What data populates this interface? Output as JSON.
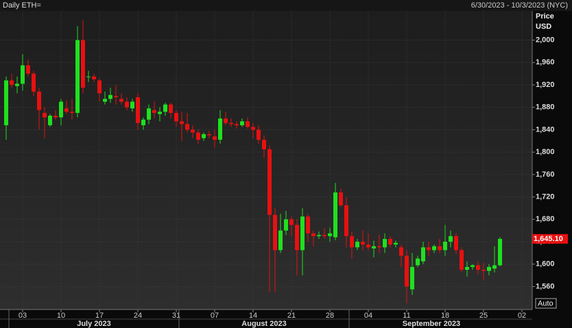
{
  "chart_data": {
    "type": "candlestick",
    "title": "Daily ETH=",
    "subtitle": "6/30/2023 - 10/3/2023 (NYC)",
    "y_label": [
      "Price",
      "USD"
    ],
    "scale_mode": "Auto",
    "x": [
      "2023-06-30",
      "2023-07-01",
      "2023-07-02",
      "2023-07-03",
      "2023-07-04",
      "2023-07-05",
      "2023-07-06",
      "2023-07-07",
      "2023-07-08",
      "2023-07-09",
      "2023-07-10",
      "2023-07-11",
      "2023-07-12",
      "2023-07-13",
      "2023-07-14",
      "2023-07-15",
      "2023-07-16",
      "2023-07-17",
      "2023-07-18",
      "2023-07-19",
      "2023-07-20",
      "2023-07-21",
      "2023-07-22",
      "2023-07-23",
      "2023-07-24",
      "2023-07-25",
      "2023-07-26",
      "2023-07-27",
      "2023-07-28",
      "2023-07-29",
      "2023-07-30",
      "2023-07-31",
      "2023-08-01",
      "2023-08-02",
      "2023-08-03",
      "2023-08-04",
      "2023-08-05",
      "2023-08-06",
      "2023-08-07",
      "2023-08-08",
      "2023-08-09",
      "2023-08-10",
      "2023-08-11",
      "2023-08-12",
      "2023-08-13",
      "2023-08-14",
      "2023-08-15",
      "2023-08-16",
      "2023-08-17",
      "2023-08-18",
      "2023-08-19",
      "2023-08-20",
      "2023-08-21",
      "2023-08-22",
      "2023-08-23",
      "2023-08-24",
      "2023-08-25",
      "2023-08-26",
      "2023-08-27",
      "2023-08-28",
      "2023-08-29",
      "2023-08-30",
      "2023-08-31",
      "2023-09-01",
      "2023-09-02",
      "2023-09-03",
      "2023-09-04",
      "2023-09-05",
      "2023-09-06",
      "2023-09-07",
      "2023-09-08",
      "2023-09-09",
      "2023-09-10",
      "2023-09-11",
      "2023-09-12",
      "2023-09-13",
      "2023-09-14",
      "2023-09-15",
      "2023-09-16",
      "2023-09-17",
      "2023-09-18",
      "2023-09-19",
      "2023-09-20",
      "2023-09-21",
      "2023-09-22",
      "2023-09-23",
      "2023-09-24",
      "2023-09-25",
      "2023-09-26",
      "2023-09-27",
      "2023-09-28"
    ],
    "open": [
      1848,
      1928,
      1918,
      1922,
      1955,
      1940,
      1908,
      1870,
      1848,
      1865,
      1862,
      1878,
      1872,
      1870,
      2000,
      1935,
      1935,
      1928,
      1890,
      1895,
      1900,
      1895,
      1890,
      1878,
      1898,
      1848,
      1858,
      1875,
      1868,
      1872,
      1885,
      1870,
      1855,
      1850,
      1840,
      1835,
      1825,
      1832,
      1828,
      1822,
      1860,
      1852,
      1850,
      1848,
      1855,
      1845,
      1840,
      1822,
      1805,
      1688,
      1625,
      1660,
      1680,
      1670,
      1625,
      1685,
      1655,
      1650,
      1652,
      1650,
      1648,
      1728,
      1705,
      1650,
      1630,
      1640,
      1635,
      1628,
      1632,
      1630,
      1645,
      1635,
      1630,
      1615,
      1555,
      1598,
      1605,
      1630,
      1625,
      1632,
      1625,
      1640,
      1650,
      1625,
      1590,
      1595,
      1598,
      1590,
      1588,
      1592,
      1598
    ],
    "high": [
      1935,
      1940,
      1935,
      1975,
      1965,
      1945,
      1915,
      1880,
      1868,
      1875,
      1895,
      1892,
      1895,
      2025,
      2035,
      1945,
      1940,
      1932,
      1908,
      1915,
      1920,
      1905,
      1898,
      1895,
      1905,
      1862,
      1885,
      1890,
      1880,
      1888,
      1888,
      1875,
      1872,
      1870,
      1848,
      1840,
      1835,
      1838,
      1840,
      1875,
      1872,
      1860,
      1855,
      1860,
      1862,
      1852,
      1848,
      1830,
      1812,
      1700,
      1690,
      1695,
      1685,
      1680,
      1700,
      1690,
      1660,
      1658,
      1665,
      1665,
      1745,
      1735,
      1720,
      1658,
      1645,
      1660,
      1655,
      1642,
      1652,
      1655,
      1650,
      1642,
      1635,
      1625,
      1620,
      1615,
      1640,
      1640,
      1635,
      1645,
      1670,
      1660,
      1655,
      1630,
      1605,
      1600,
      1605,
      1602,
      1600,
      1632,
      1648
    ],
    "low": [
      1822,
      1915,
      1905,
      1910,
      1935,
      1900,
      1840,
      1825,
      1845,
      1858,
      1848,
      1868,
      1858,
      1862,
      1905,
      1925,
      1925,
      1890,
      1885,
      1888,
      1885,
      1885,
      1875,
      1872,
      1840,
      1840,
      1850,
      1860,
      1855,
      1865,
      1860,
      1845,
      1820,
      1835,
      1825,
      1815,
      1820,
      1825,
      1808,
      1815,
      1848,
      1845,
      1842,
      1845,
      1842,
      1825,
      1815,
      1790,
      1550,
      1550,
      1620,
      1652,
      1650,
      1580,
      1580,
      1640,
      1632,
      1645,
      1645,
      1640,
      1643,
      1702,
      1630,
      1610,
      1625,
      1625,
      1625,
      1612,
      1620,
      1620,
      1630,
      1630,
      1595,
      1530,
      1545,
      1595,
      1600,
      1615,
      1620,
      1620,
      1615,
      1630,
      1618,
      1585,
      1578,
      1590,
      1582,
      1572,
      1580,
      1585,
      1596
    ],
    "close": [
      1928,
      1920,
      1922,
      1955,
      1940,
      1908,
      1875,
      1862,
      1865,
      1862,
      1890,
      1872,
      1870,
      2000,
      1915,
      1935,
      1930,
      1905,
      1895,
      1902,
      1898,
      1890,
      1880,
      1890,
      1852,
      1858,
      1878,
      1870,
      1872,
      1885,
      1870,
      1855,
      1850,
      1840,
      1835,
      1822,
      1832,
      1830,
      1822,
      1860,
      1852,
      1850,
      1848,
      1855,
      1845,
      1840,
      1822,
      1805,
      1688,
      1625,
      1660,
      1680,
      1670,
      1625,
      1685,
      1655,
      1650,
      1652,
      1650,
      1655,
      1728,
      1705,
      1650,
      1630,
      1640,
      1635,
      1630,
      1632,
      1630,
      1645,
      1635,
      1638,
      1615,
      1560,
      1595,
      1610,
      1630,
      1625,
      1632,
      1625,
      1640,
      1650,
      1625,
      1590,
      1595,
      1598,
      1590,
      1588,
      1595,
      1598,
      1645.1
    ],
    "up_color": "#1fe01f",
    "down_color": "#e81010",
    "last_price": {
      "value": 1645.1,
      "label": "1,645.10"
    },
    "xlim": [
      "2023-06-29",
      "2023-10-03"
    ],
    "xticks": [
      {
        "value": "2023-07-03",
        "label": "03"
      },
      {
        "value": "2023-07-10",
        "label": "10"
      },
      {
        "value": "2023-07-17",
        "label": "17"
      },
      {
        "value": "2023-07-24",
        "label": "24"
      },
      {
        "value": "2023-07-31",
        "label": "31"
      },
      {
        "value": "2023-08-07",
        "label": "07"
      },
      {
        "value": "2023-08-14",
        "label": "14"
      },
      {
        "value": "2023-08-21",
        "label": "21"
      },
      {
        "value": "2023-08-28",
        "label": "28"
      },
      {
        "value": "2023-09-04",
        "label": "04"
      },
      {
        "value": "2023-09-11",
        "label": "11"
      },
      {
        "value": "2023-09-18",
        "label": "18"
      },
      {
        "value": "2023-09-25",
        "label": "25"
      },
      {
        "value": "2023-10-02",
        "label": "02"
      }
    ],
    "months": [
      {
        "value": "2023-07",
        "label": "July 2023"
      },
      {
        "value": "2023-08",
        "label": "August 2023"
      },
      {
        "value": "2023-09",
        "label": "September 2023"
      }
    ],
    "ylim": [
      1519,
      2052
    ],
    "yticks": [
      {
        "value": 1560,
        "label": "1,560"
      },
      {
        "value": 1600,
        "label": "1,600"
      },
      {
        "value": 1640,
        "label": "1,640"
      },
      {
        "value": 1680,
        "label": "1,680"
      },
      {
        "value": 1720,
        "label": "1,720"
      },
      {
        "value": 1760,
        "label": "1,760"
      },
      {
        "value": 1800,
        "label": "1,800"
      },
      {
        "value": 1840,
        "label": "1,840"
      },
      {
        "value": 1880,
        "label": "1,880"
      },
      {
        "value": 1920,
        "label": "1,920"
      },
      {
        "value": 1960,
        "label": "1,960"
      },
      {
        "value": 2000,
        "label": "2,000"
      }
    ],
    "grid": true
  }
}
